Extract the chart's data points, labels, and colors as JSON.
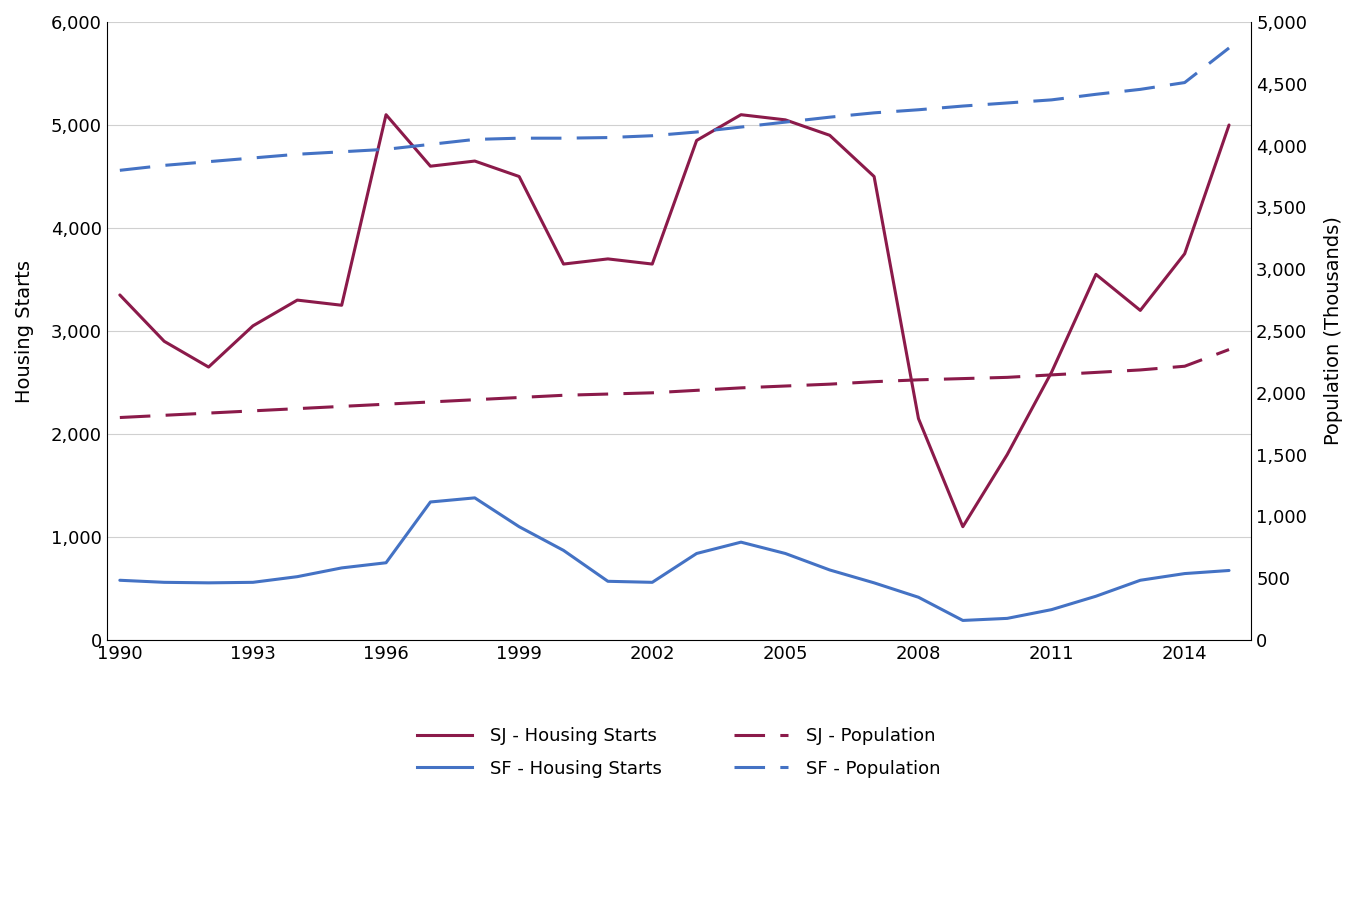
{
  "years": [
    1990,
    1991,
    1992,
    1993,
    1994,
    1995,
    1996,
    1997,
    1998,
    1999,
    2000,
    2001,
    2002,
    2003,
    2004,
    2005,
    2006,
    2007,
    2008,
    2009,
    2010,
    2011,
    2012,
    2013,
    2014,
    2015
  ],
  "sj_housing_starts": [
    3350,
    2900,
    2650,
    3050,
    3300,
    3250,
    5100,
    4600,
    4650,
    4500,
    3650,
    3700,
    3650,
    4850,
    5100,
    5050,
    4900,
    4500,
    2150,
    1100,
    1800,
    2600,
    3550,
    3200,
    3750,
    5000
  ],
  "sf_housing_starts": [
    580,
    560,
    555,
    560,
    615,
    700,
    750,
    1340,
    1380,
    1100,
    870,
    570,
    560,
    840,
    950,
    840,
    680,
    555,
    415,
    190,
    210,
    295,
    425,
    580,
    645,
    675
  ],
  "sj_population": [
    1800,
    1818,
    1836,
    1854,
    1872,
    1890,
    1908,
    1926,
    1944,
    1962,
    1980,
    1990,
    2000,
    2020,
    2040,
    2055,
    2070,
    2090,
    2105,
    2115,
    2125,
    2145,
    2165,
    2185,
    2215,
    2350
  ],
  "sf_population": [
    3800,
    3840,
    3870,
    3900,
    3930,
    3950,
    3970,
    4010,
    4050,
    4060,
    4060,
    4065,
    4080,
    4110,
    4150,
    4190,
    4230,
    4265,
    4290,
    4320,
    4345,
    4370,
    4415,
    4455,
    4510,
    4790
  ],
  "sj_color": "#8B1A4A",
  "sf_color": "#4472C4",
  "ylabel_left": "Housing Starts",
  "ylabel_right": "Population (Thousands)",
  "ylim_left": [
    0,
    6000
  ],
  "ylim_right": [
    0,
    5000
  ],
  "yticks_left": [
    0,
    1000,
    2000,
    3000,
    4000,
    5000,
    6000
  ],
  "yticks_right": [
    0,
    500,
    1000,
    1500,
    2000,
    2500,
    3000,
    3500,
    4000,
    4500,
    5000
  ],
  "xticks": [
    1990,
    1993,
    1996,
    1999,
    2002,
    2005,
    2008,
    2011,
    2014
  ],
  "background_color": "#FFFFFF",
  "grid_color": "#D0D0D0",
  "legend_labels": [
    "SJ - Housing Starts",
    "SF - Housing Starts",
    "SJ - Population",
    "SF - Population"
  ]
}
